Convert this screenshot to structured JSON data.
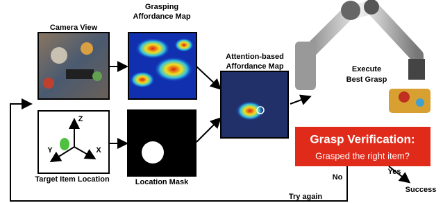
{
  "labels": {
    "camera_view": "Camera View",
    "grasping_map": [
      "Grasping",
      "Affordance Map"
    ],
    "attention_map": [
      "Attention-based",
      "Affordance Map"
    ],
    "execute": [
      "Execute",
      "Best Grasp"
    ],
    "verification_title": "Grasp Verification:",
    "verification_question": "Grasped the right item?",
    "yes": "Yes",
    "success": "Success",
    "no": "No",
    "try_again": "Try again",
    "target_location": "Target Item Location",
    "location_mask": "Location Mask",
    "axis_z": "Z",
    "axis_y": "Y",
    "axis_x": "X"
  }
}
